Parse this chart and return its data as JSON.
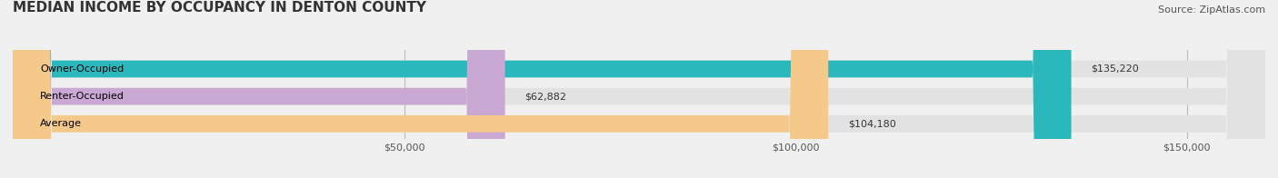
{
  "title": "MEDIAN INCOME BY OCCUPANCY IN DENTON COUNTY",
  "source": "Source: ZipAtlas.com",
  "categories": [
    "Owner-Occupied",
    "Renter-Occupied",
    "Average"
  ],
  "values": [
    135220,
    62882,
    104180
  ],
  "labels": [
    "$135,220",
    "$62,882",
    "$104,180"
  ],
  "bar_colors": [
    "#2ab8bc",
    "#c9a8d4",
    "#f5c98a"
  ],
  "background_color": "#f0f0f0",
  "bar_bg_color": "#e2e2e2",
  "xlim": [
    0,
    160000
  ],
  "xticks": [
    50000,
    100000,
    150000
  ],
  "xticklabels": [
    "$50,000",
    "$100,000",
    "$150,000"
  ],
  "title_fontsize": 11,
  "source_fontsize": 8,
  "label_fontsize": 8,
  "cat_fontsize": 8
}
